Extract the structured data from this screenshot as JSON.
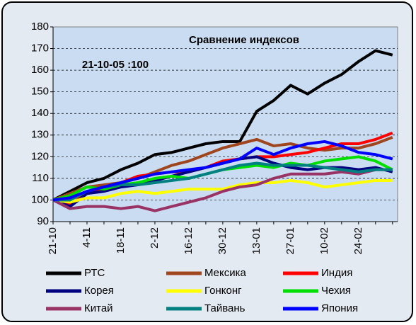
{
  "chart_data": {
    "type": "line",
    "title": "Сравнение индексов",
    "annotation": "21-10-05 :100",
    "categories": [
      "21-10",
      null,
      "4-11",
      null,
      "18-11",
      null,
      "2-12",
      null,
      "16-12",
      null,
      "30-12",
      null,
      "13-01",
      null,
      "27-01",
      null,
      "10-02",
      null,
      "24-02",
      null,
      null
    ],
    "ylim": [
      90,
      180
    ],
    "yticks": [
      90,
      100,
      110,
      120,
      130,
      140,
      150,
      160,
      170,
      180
    ],
    "grid": true,
    "legend": "bottom",
    "series": [
      {
        "name": "РТС",
        "color": "#000000",
        "values": [
          100,
          104,
          108,
          110,
          114,
          117,
          121,
          122,
          124,
          126,
          127,
          127,
          141,
          146,
          153,
          149,
          154,
          158,
          164,
          169,
          167
        ]
      },
      {
        "name": "Мексика",
        "color": "#a0461e",
        "values": [
          100,
          103,
          106,
          107,
          108,
          110,
          113,
          116,
          118,
          121,
          124,
          126,
          128,
          125,
          126,
          124,
          123,
          124,
          124,
          126,
          129
        ]
      },
      {
        "name": "Индия",
        "color": "#ff0000",
        "values": [
          100,
          98,
          103,
          105,
          108,
          111,
          112,
          113,
          113,
          115,
          118,
          119,
          120,
          120,
          121,
          122,
          124,
          126,
          126,
          128,
          131
        ]
      },
      {
        "name": "Корея",
        "color": "#000080",
        "values": [
          100,
          97,
          103,
          104,
          106,
          107,
          109,
          111,
          113,
          115,
          117,
          119,
          120,
          117,
          115,
          114,
          115,
          115,
          114,
          115,
          113
        ]
      },
      {
        "name": "Гонконг",
        "color": "#ffff00",
        "values": [
          100,
          99,
          101,
          101,
          103,
          104,
          103,
          104,
          105,
          105,
          105,
          107,
          108,
          108,
          109,
          108,
          106,
          107,
          108,
          109,
          109
        ]
      },
      {
        "name": "Чехия",
        "color": "#00e000",
        "values": [
          100,
          102,
          106,
          105,
          107,
          108,
          110,
          111,
          110,
          112,
          114,
          115,
          116,
          115,
          117,
          116,
          118,
          119,
          120,
          118,
          114
        ]
      },
      {
        "name": "Китай",
        "color": "#993366",
        "values": [
          100,
          96,
          97,
          97,
          96,
          97,
          95,
          97,
          99,
          101,
          104,
          106,
          107,
          110,
          112,
          112,
          112,
          113,
          112,
          114,
          114
        ]
      },
      {
        "name": "Тайвань",
        "color": "#008080",
        "values": [
          100,
          100,
          104,
          106,
          107,
          107,
          108,
          109,
          110,
          112,
          114,
          116,
          117,
          116,
          116,
          116,
          115,
          114,
          113,
          114,
          114
        ]
      },
      {
        "name": "Япония",
        "color": "#0000ff",
        "values": [
          100,
          101,
          104,
          106,
          108,
          110,
          112,
          113,
          114,
          115,
          117,
          119,
          124,
          121,
          124,
          126,
          127,
          125,
          122,
          121,
          119
        ]
      }
    ]
  }
}
